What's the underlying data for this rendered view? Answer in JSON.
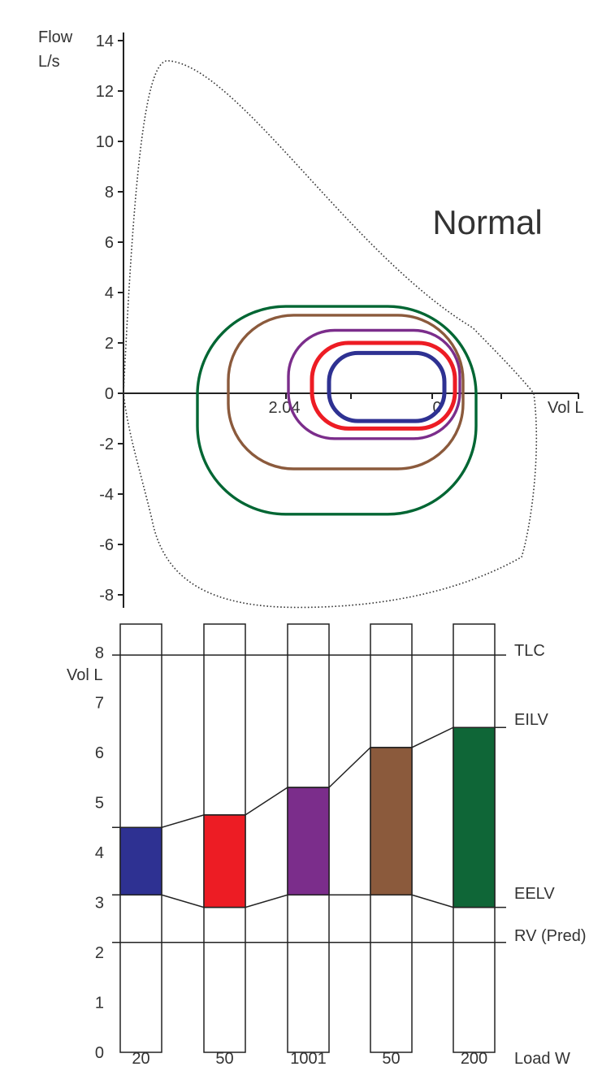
{
  "chart_data": [
    {
      "type": "line",
      "title": "Normal",
      "ylabel_line1": "Flow",
      "ylabel_line2": "L/s",
      "xlabel": "Vol L",
      "ylim": [
        -8,
        14
      ],
      "y_ticks": [
        "14",
        "12",
        "10",
        "8",
        "6",
        "4",
        "2",
        "0",
        "-2",
        "-4",
        "-6",
        "-8"
      ],
      "x_tick_labels": [
        "2.04",
        "0"
      ],
      "grid": false,
      "series": [
        {
          "color": "#333333",
          "style": "dotted",
          "points": [
            [
              0.0,
              0.0
            ],
            [
              0.55,
              13.2
            ],
            [
              4.3,
              2.6
            ],
            [
              5.05,
              0.0
            ],
            [
              4.9,
              -6.5
            ],
            [
              2.15,
              -8.5
            ],
            [
              0.0,
              -1.0
            ]
          ]
        },
        {
          "color": "#006633",
          "style": "solid",
          "rx_max": 3.45,
          "rx_min": 4.8
        },
        {
          "color": "#8b5a3c",
          "style": "solid",
          "rx_max": 3.1,
          "rx_min": 3.0
        },
        {
          "color": "#7b2d8b",
          "style": "solid",
          "rx_max": 2.5,
          "rx_min": 1.8
        },
        {
          "color": "#ed1c24",
          "style": "solid",
          "rx_max": 2.0,
          "rx_min": 1.4
        },
        {
          "color": "#2e3192",
          "style": "solid",
          "rx_max": 1.6,
          "rx_min": 1.1
        }
      ]
    },
    {
      "type": "bar",
      "ylabel": "Vol L",
      "xlabel": "Load W",
      "ylim": [
        0,
        8.5
      ],
      "y_ticks": [
        "8",
        "7",
        "6",
        "5",
        "4",
        "3",
        "2",
        "1",
        "0"
      ],
      "categories": [
        "20",
        "50",
        "1001",
        "50",
        "200"
      ],
      "ranges": [
        [
          3.15,
          4.5
        ],
        [
          2.9,
          4.75
        ],
        [
          3.15,
          5.3
        ],
        [
          3.15,
          6.1
        ],
        [
          2.9,
          6.5
        ]
      ],
      "colors": [
        "#2e3192",
        "#ed1c24",
        "#7b2d8b",
        "#8b5a3c",
        "#0f6637"
      ],
      "reference_lines": [
        {
          "label": "TLC",
          "value": 7.95
        },
        {
          "label": "RV (Pred)",
          "value": 2.2
        }
      ],
      "line_labels": {
        "upper": "EILV",
        "lower": "EELV"
      }
    }
  ]
}
